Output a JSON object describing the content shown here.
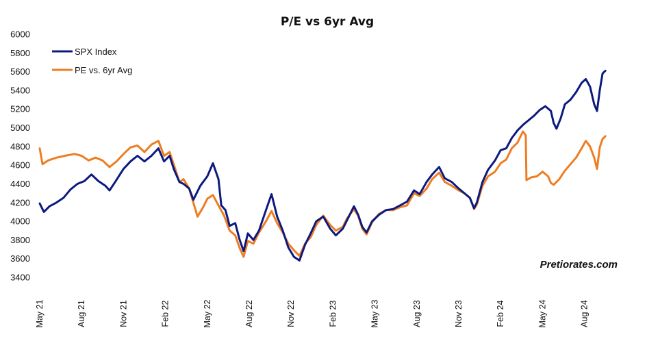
{
  "chart_data": {
    "type": "line",
    "title": "P/E vs 6yr Avg",
    "watermark": "Pretiorates.com",
    "xlabel": "",
    "ylabel": "",
    "ylim": [
      3400,
      6000
    ],
    "yticks": [
      "3400",
      "3600",
      "3800",
      "4000",
      "4200",
      "4400",
      "4600",
      "4800",
      "5000",
      "5200",
      "5400",
      "5600",
      "5800",
      "6000"
    ],
    "xticks": [
      "May 21",
      "Aug 21",
      "Nov 21",
      "Feb 22",
      "May 22",
      "Aug 22",
      "Nov 22",
      "Feb 23",
      "May 23",
      "Aug 23",
      "Nov 23",
      "Feb 24",
      "May 24",
      "Aug 24"
    ],
    "x_month_index_range": [
      0,
      40
    ],
    "grid": false,
    "legend_position": "top-left",
    "series": [
      {
        "name": "SPX Index",
        "color": "#0c1a80",
        "points": [
          [
            0,
            4190
          ],
          [
            0.3,
            4100
          ],
          [
            0.7,
            4160
          ],
          [
            1.2,
            4200
          ],
          [
            1.7,
            4250
          ],
          [
            2.2,
            4340
          ],
          [
            2.7,
            4400
          ],
          [
            3.2,
            4430
          ],
          [
            3.7,
            4500
          ],
          [
            4.2,
            4430
          ],
          [
            4.7,
            4380
          ],
          [
            5.0,
            4330
          ],
          [
            5.4,
            4420
          ],
          [
            6.0,
            4560
          ],
          [
            6.5,
            4640
          ],
          [
            7.0,
            4700
          ],
          [
            7.5,
            4640
          ],
          [
            8.0,
            4700
          ],
          [
            8.5,
            4780
          ],
          [
            8.9,
            4640
          ],
          [
            9.3,
            4700
          ],
          [
            9.6,
            4560
          ],
          [
            10.0,
            4420
          ],
          [
            10.3,
            4400
          ],
          [
            10.7,
            4350
          ],
          [
            11.0,
            4230
          ],
          [
            11.5,
            4380
          ],
          [
            12.0,
            4480
          ],
          [
            12.4,
            4620
          ],
          [
            12.8,
            4450
          ],
          [
            13.0,
            4170
          ],
          [
            13.3,
            4120
          ],
          [
            13.6,
            3950
          ],
          [
            14.0,
            3980
          ],
          [
            14.3,
            3810
          ],
          [
            14.6,
            3680
          ],
          [
            14.9,
            3870
          ],
          [
            15.3,
            3800
          ],
          [
            15.7,
            3900
          ],
          [
            16.2,
            4120
          ],
          [
            16.6,
            4290
          ],
          [
            17.0,
            4050
          ],
          [
            17.4,
            3900
          ],
          [
            17.8,
            3720
          ],
          [
            18.2,
            3620
          ],
          [
            18.6,
            3580
          ],
          [
            19.0,
            3750
          ],
          [
            19.4,
            3870
          ],
          [
            19.8,
            4000
          ],
          [
            20.3,
            4050
          ],
          [
            20.8,
            3920
          ],
          [
            21.2,
            3850
          ],
          [
            21.7,
            3920
          ],
          [
            22.0,
            4010
          ],
          [
            22.5,
            4160
          ],
          [
            22.8,
            4070
          ],
          [
            23.1,
            3940
          ],
          [
            23.4,
            3880
          ],
          [
            23.8,
            4000
          ],
          [
            24.3,
            4070
          ],
          [
            24.8,
            4120
          ],
          [
            25.3,
            4130
          ],
          [
            25.8,
            4170
          ],
          [
            26.3,
            4210
          ],
          [
            26.8,
            4330
          ],
          [
            27.2,
            4290
          ],
          [
            27.7,
            4420
          ],
          [
            28.1,
            4500
          ],
          [
            28.6,
            4580
          ],
          [
            29.0,
            4460
          ],
          [
            29.5,
            4420
          ],
          [
            30.0,
            4350
          ],
          [
            30.4,
            4300
          ],
          [
            30.8,
            4250
          ],
          [
            31.1,
            4140
          ],
          [
            31.3,
            4200
          ],
          [
            31.7,
            4420
          ],
          [
            32.1,
            4550
          ],
          [
            32.6,
            4650
          ],
          [
            33.0,
            4760
          ],
          [
            33.4,
            4780
          ],
          [
            33.8,
            4890
          ],
          [
            34.2,
            4970
          ],
          [
            34.6,
            5030
          ],
          [
            35.0,
            5080
          ],
          [
            35.4,
            5130
          ],
          [
            35.8,
            5190
          ],
          [
            36.2,
            5230
          ],
          [
            36.6,
            5180
          ],
          [
            36.8,
            5050
          ],
          [
            37.0,
            4990
          ],
          [
            37.3,
            5100
          ],
          [
            37.6,
            5250
          ],
          [
            38.0,
            5300
          ],
          [
            38.4,
            5380
          ],
          [
            38.8,
            5480
          ],
          [
            39.1,
            5520
          ],
          [
            39.4,
            5440
          ],
          [
            39.7,
            5250
          ],
          [
            39.9,
            5180
          ],
          [
            40.1,
            5400
          ],
          [
            40.3,
            5580
          ],
          [
            40.5,
            5610
          ]
        ]
      },
      {
        "name": "PE vs. 6yr Avg",
        "color": "#ee7d22",
        "points": [
          [
            0,
            4780
          ],
          [
            0.2,
            4610
          ],
          [
            0.6,
            4650
          ],
          [
            1.2,
            4680
          ],
          [
            1.8,
            4700
          ],
          [
            2.5,
            4720
          ],
          [
            3.0,
            4700
          ],
          [
            3.5,
            4650
          ],
          [
            4.0,
            4680
          ],
          [
            4.5,
            4650
          ],
          [
            5.0,
            4580
          ],
          [
            5.5,
            4640
          ],
          [
            6.0,
            4720
          ],
          [
            6.5,
            4790
          ],
          [
            7.0,
            4810
          ],
          [
            7.5,
            4740
          ],
          [
            8.0,
            4820
          ],
          [
            8.5,
            4860
          ],
          [
            8.9,
            4700
          ],
          [
            9.3,
            4740
          ],
          [
            9.7,
            4560
          ],
          [
            10.0,
            4420
          ],
          [
            10.3,
            4450
          ],
          [
            10.7,
            4350
          ],
          [
            11.0,
            4200
          ],
          [
            11.3,
            4050
          ],
          [
            11.7,
            4150
          ],
          [
            12.0,
            4240
          ],
          [
            12.4,
            4280
          ],
          [
            12.8,
            4170
          ],
          [
            13.2,
            4060
          ],
          [
            13.6,
            3900
          ],
          [
            14.0,
            3850
          ],
          [
            14.3,
            3720
          ],
          [
            14.6,
            3620
          ],
          [
            14.9,
            3790
          ],
          [
            15.3,
            3760
          ],
          [
            15.7,
            3880
          ],
          [
            16.2,
            4000
          ],
          [
            16.6,
            4110
          ],
          [
            17.0,
            3980
          ],
          [
            17.4,
            3880
          ],
          [
            17.8,
            3760
          ],
          [
            18.2,
            3690
          ],
          [
            18.6,
            3630
          ],
          [
            19.0,
            3760
          ],
          [
            19.4,
            3830
          ],
          [
            19.8,
            3960
          ],
          [
            20.3,
            4060
          ],
          [
            20.8,
            3960
          ],
          [
            21.2,
            3900
          ],
          [
            21.7,
            3940
          ],
          [
            22.0,
            4030
          ],
          [
            22.5,
            4130
          ],
          [
            22.8,
            4060
          ],
          [
            23.1,
            3920
          ],
          [
            23.4,
            3860
          ],
          [
            23.8,
            3990
          ],
          [
            24.3,
            4080
          ],
          [
            24.8,
            4120
          ],
          [
            25.3,
            4120
          ],
          [
            25.8,
            4150
          ],
          [
            26.3,
            4170
          ],
          [
            26.8,
            4300
          ],
          [
            27.2,
            4270
          ],
          [
            27.7,
            4350
          ],
          [
            28.1,
            4450
          ],
          [
            28.6,
            4520
          ],
          [
            29.0,
            4420
          ],
          [
            29.5,
            4380
          ],
          [
            30.0,
            4330
          ],
          [
            30.4,
            4300
          ],
          [
            30.8,
            4250
          ],
          [
            31.1,
            4130
          ],
          [
            31.3,
            4180
          ],
          [
            31.7,
            4380
          ],
          [
            32.1,
            4480
          ],
          [
            32.6,
            4530
          ],
          [
            33.0,
            4620
          ],
          [
            33.4,
            4660
          ],
          [
            33.8,
            4780
          ],
          [
            34.2,
            4840
          ],
          [
            34.6,
            4960
          ],
          [
            34.8,
            4920
          ],
          [
            34.85,
            4440
          ],
          [
            35.2,
            4470
          ],
          [
            35.6,
            4480
          ],
          [
            36.0,
            4530
          ],
          [
            36.4,
            4480
          ],
          [
            36.6,
            4410
          ],
          [
            36.8,
            4390
          ],
          [
            37.2,
            4450
          ],
          [
            37.6,
            4540
          ],
          [
            38.0,
            4610
          ],
          [
            38.4,
            4680
          ],
          [
            38.8,
            4780
          ],
          [
            39.1,
            4860
          ],
          [
            39.4,
            4800
          ],
          [
            39.7,
            4680
          ],
          [
            39.9,
            4560
          ],
          [
            40.1,
            4790
          ],
          [
            40.3,
            4880
          ],
          [
            40.5,
            4910
          ]
        ]
      }
    ]
  }
}
